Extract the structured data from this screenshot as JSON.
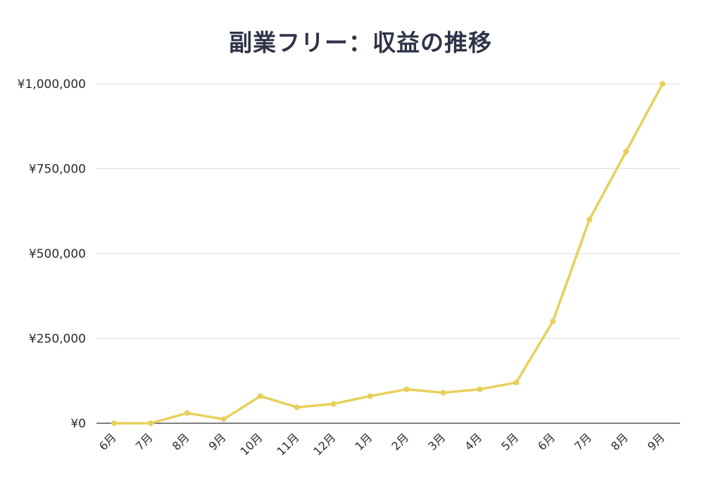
{
  "chart_data": {
    "type": "line",
    "title": "副業フリー：収益の推移",
    "xlabel": "",
    "ylabel": "",
    "categories": [
      "6月",
      "7月",
      "8月",
      "9月",
      "10月",
      "11月",
      "12月",
      "1月",
      "2月",
      "3月",
      "4月",
      "5月",
      "6月",
      "7月",
      "8月",
      "9月"
    ],
    "series": [
      {
        "values": [
          0,
          0,
          30000,
          12000,
          80000,
          47000,
          57000,
          80000,
          100000,
          90000,
          100000,
          120000,
          300000,
          600000,
          800000,
          1000000
        ],
        "color": "#e8cf5a"
      }
    ],
    "ylim": [
      0,
      1000000
    ],
    "yticks": [
      0,
      250000,
      500000,
      750000,
      1000000
    ],
    "ytick_labels": [
      "¥0",
      "¥250,000",
      "¥500,000",
      "¥750,000",
      "¥1,000,000"
    ],
    "grid": true,
    "legend": "none",
    "colors": {
      "line": "#e8cf5a",
      "grid": "#d9d9d9",
      "axis": "#333333",
      "title": "#2e3347"
    }
  }
}
